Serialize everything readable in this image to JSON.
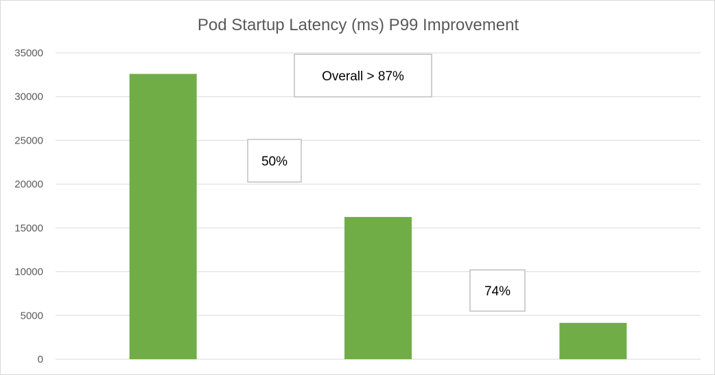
{
  "chart_data": {
    "type": "bar",
    "title": "Pod Startup Latency (ms) P99 Improvement",
    "xlabel": "",
    "ylabel": "",
    "categories": [
      "",
      "",
      ""
    ],
    "values": [
      32600,
      16250,
      4150
    ],
    "ylim": [
      0,
      35000
    ],
    "yticks": [
      0,
      5000,
      10000,
      15000,
      20000,
      25000,
      30000,
      35000
    ],
    "grid": true,
    "legend": "none",
    "bar_color": "#70ad47",
    "annotations": [
      {
        "text": "Overall > 87%"
      },
      {
        "text": "50%"
      },
      {
        "text": "74%"
      }
    ]
  }
}
